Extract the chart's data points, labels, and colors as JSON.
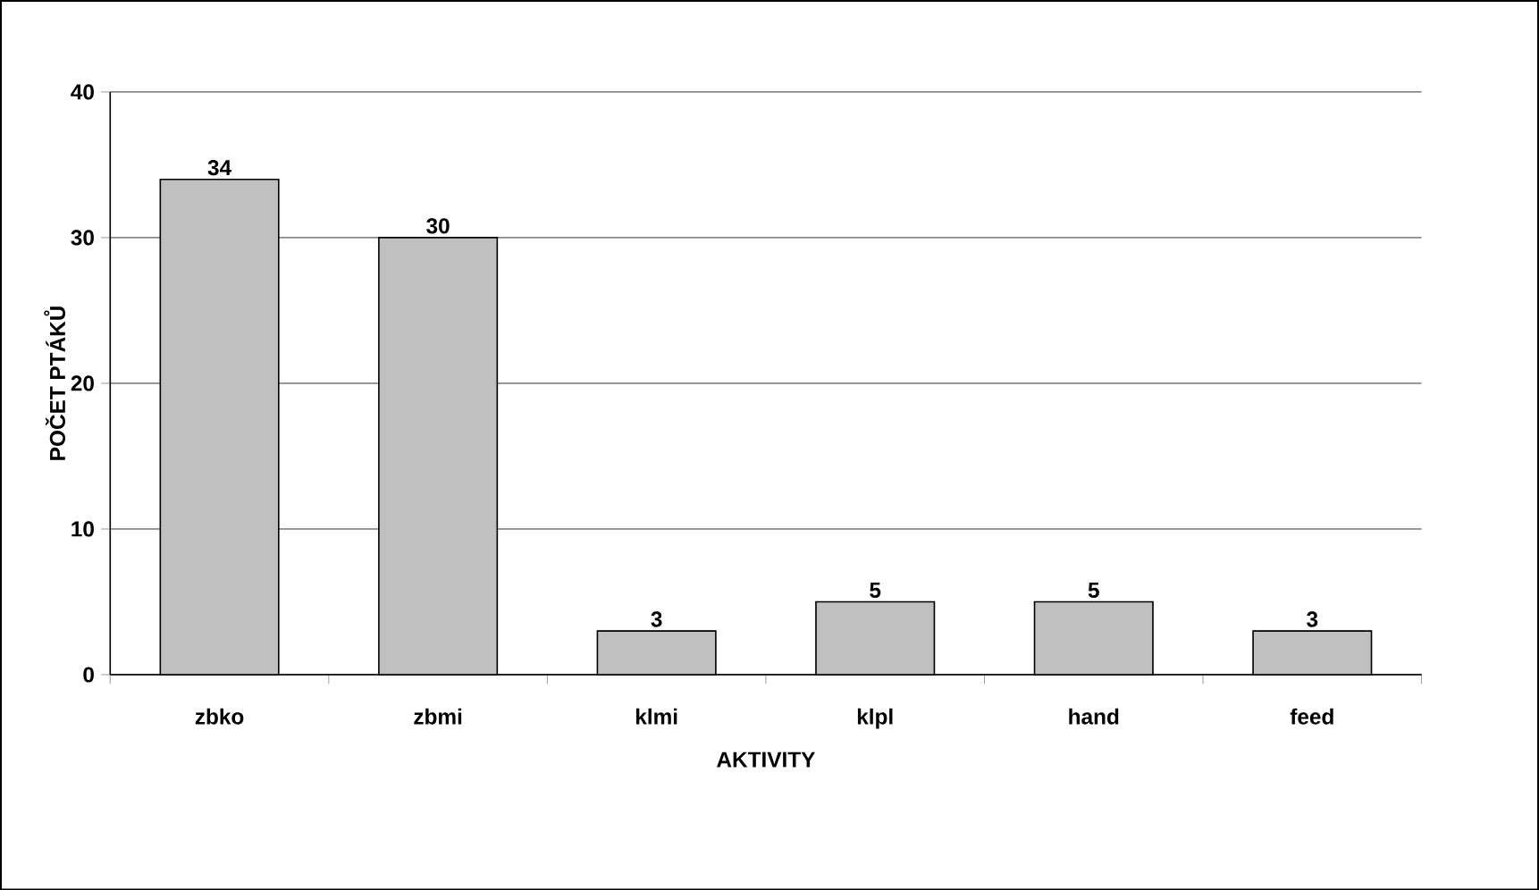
{
  "chart_data": {
    "type": "bar",
    "xlabel": "AKTIVITY",
    "ylabel": "POČET PTÁKŮ",
    "categories": [
      "zbko",
      "zbmi",
      "klmi",
      "klpl",
      "hand",
      "feed"
    ],
    "values": [
      34,
      30,
      3,
      5,
      5,
      3
    ],
    "color": "#c0c0c0",
    "ylim": [
      0,
      40
    ],
    "yticks": [
      0,
      10,
      20,
      30,
      40
    ],
    "grid": "y",
    "data_labels": true
  }
}
